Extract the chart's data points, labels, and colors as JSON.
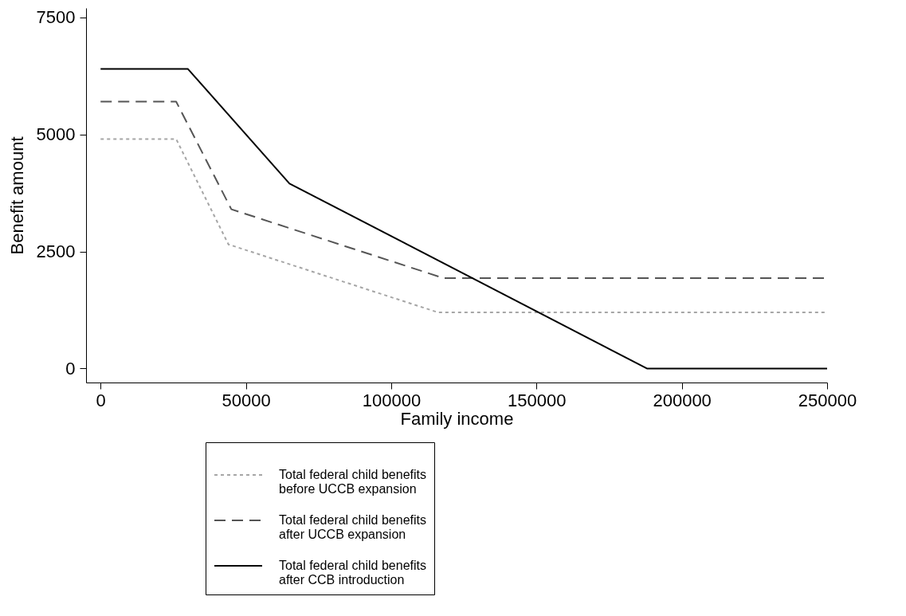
{
  "chart_data": {
    "type": "line",
    "xlabel": "Family income",
    "ylabel": "Benefit amount",
    "xlim": [
      -5000,
      250000
    ],
    "xticks": [
      0,
      50000,
      100000,
      150000,
      200000,
      250000
    ],
    "ylim": [
      -300,
      7700
    ],
    "yticks": [
      0,
      2500,
      5000,
      7500
    ],
    "grid": false,
    "legend": "bottom",
    "marker": "none",
    "series": [
      {
        "name": "Total federal child benefits before UCCB expansion",
        "color": "#a6a6a6",
        "line_style": "dotted",
        "x": [
          0,
          26000,
          44000,
          116000,
          250000
        ],
        "values": [
          4900,
          4900,
          2650,
          1200,
          1200
        ]
      },
      {
        "name": "Total federal child benefits after UCCB expansion",
        "color": "#555555",
        "line_style": "dashed",
        "x": [
          0,
          26000,
          45000,
          118000,
          250000
        ],
        "values": [
          5700,
          5700,
          3400,
          1930,
          1930
        ]
      },
      {
        "name": "Total federal child benefits after CCB introduction",
        "color": "#000000",
        "line_style": "solid",
        "x": [
          0,
          30000,
          65000,
          188000,
          250000
        ],
        "values": [
          6400,
          6400,
          3950,
          0,
          0
        ]
      }
    ]
  }
}
